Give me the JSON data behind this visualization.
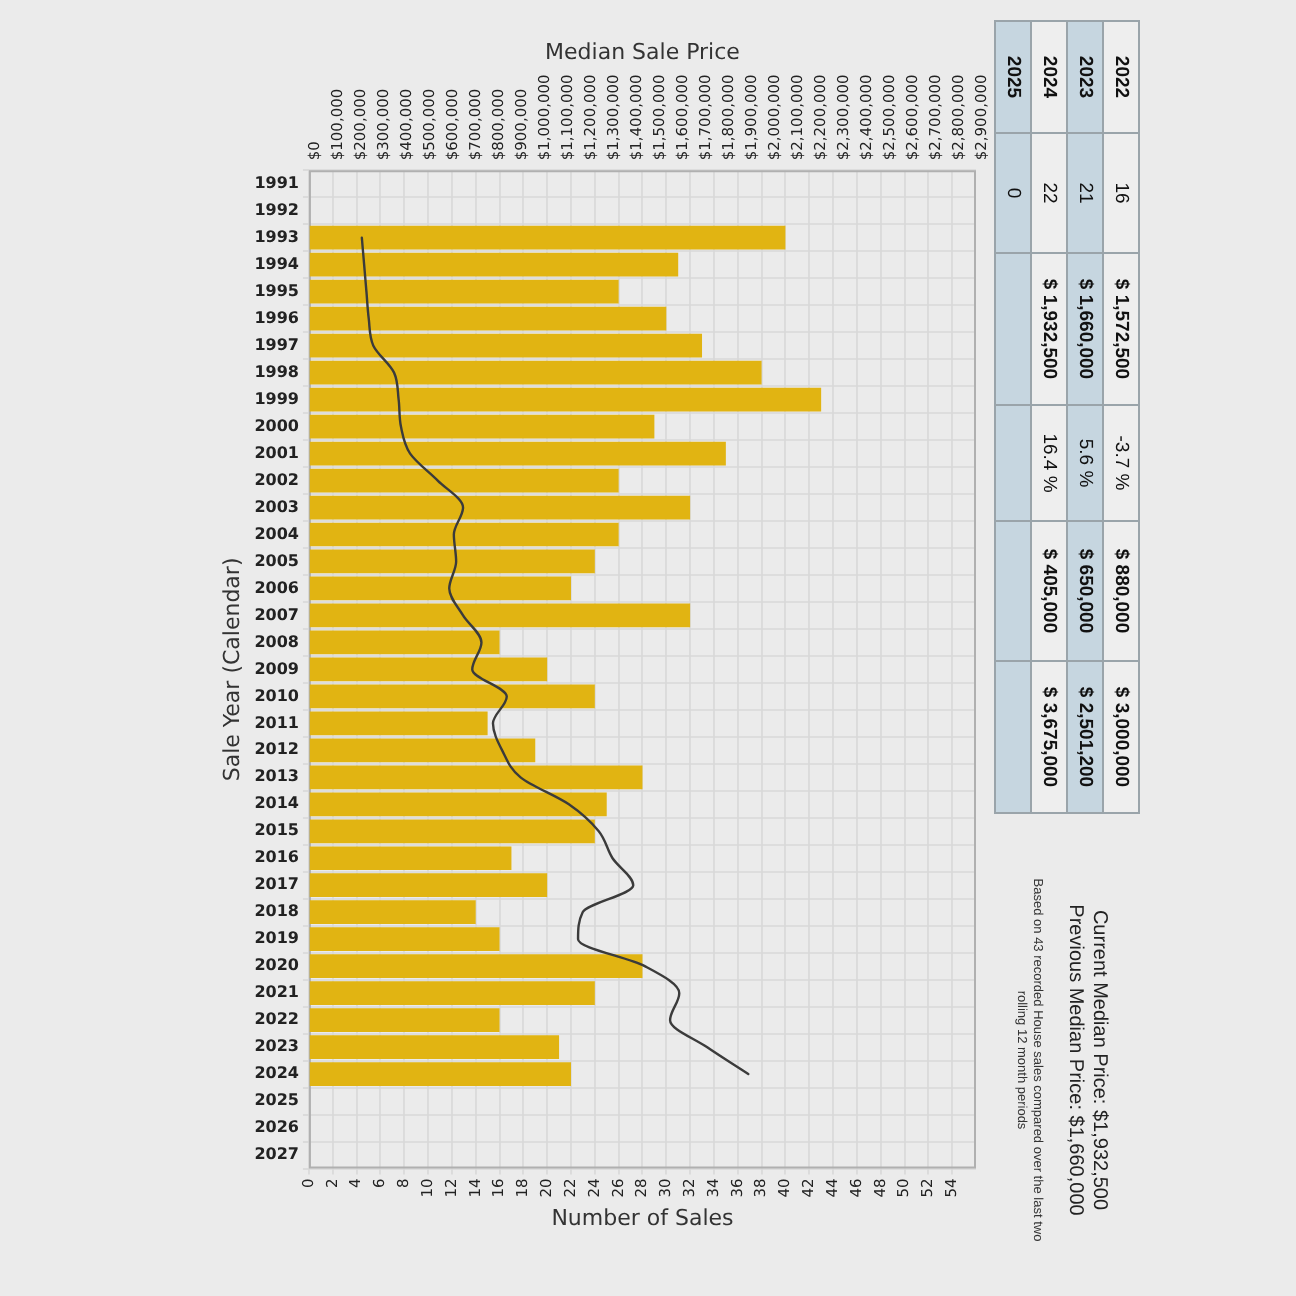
{
  "chart_data": [
    {
      "type": "bar",
      "orientation": "horizontal",
      "xlabel": "Number of Sales",
      "x2label": "Median Sale Price",
      "ylabel": "Sale Year (Calendar)",
      "categories": [
        "1991",
        "1992",
        "1993",
        "1994",
        "1995",
        "1996",
        "1997",
        "1998",
        "1999",
        "2000",
        "2001",
        "2002",
        "2003",
        "2004",
        "2005",
        "2006",
        "2007",
        "2008",
        "2009",
        "2010",
        "2011",
        "2012",
        "2013",
        "2014",
        "2015",
        "2016",
        "2017",
        "2018",
        "2019",
        "2020",
        "2021",
        "2022",
        "2023",
        "2024",
        "2025",
        "2026",
        "2027"
      ],
      "series": [
        {
          "type": "bar",
          "color": "#e1b412",
          "values": [
            null,
            null,
            40,
            31,
            26,
            30,
            33,
            38,
            43,
            29,
            35,
            26,
            32,
            26,
            24,
            22,
            32,
            16,
            20,
            24,
            15,
            19,
            28,
            25,
            24,
            17,
            20,
            14,
            16,
            28,
            24,
            16,
            21,
            22,
            null,
            null,
            null
          ]
        },
        {
          "type": "line",
          "axis": "x2",
          "color": "#3b3b3b",
          "values": [
            null,
            null,
            230000,
            240000,
            250000,
            260000,
            280000,
            370000,
            390000,
            400000,
            440000,
            560000,
            670000,
            630000,
            640000,
            610000,
            670000,
            750000,
            710000,
            860000,
            800000,
            840000,
            920000,
            1130000,
            1260000,
            1320000,
            1410000,
            1190000,
            1170000,
            1460000,
            1610000,
            1570000,
            1730000,
            1910000,
            null,
            null,
            null
          ]
        }
      ],
      "xlim": [
        0,
        56
      ],
      "xticks": [
        0,
        2,
        4,
        6,
        8,
        10,
        12,
        14,
        16,
        18,
        20,
        22,
        24,
        26,
        28,
        30,
        32,
        34,
        36,
        38,
        40,
        42,
        44,
        46,
        48,
        50,
        52,
        54
      ],
      "x2lim": [
        0,
        2900000
      ],
      "x2ticks": [
        {
          "value": 0,
          "label": "$0"
        },
        {
          "value": 100000,
          "label": "$100,000"
        },
        {
          "value": 200000,
          "label": "$200,000"
        },
        {
          "value": 300000,
          "label": "$300,000"
        },
        {
          "value": 400000,
          "label": "$400,000"
        },
        {
          "value": 500000,
          "label": "$500,000"
        },
        {
          "value": 600000,
          "label": "$600,000"
        },
        {
          "value": 700000,
          "label": "$700,000"
        },
        {
          "value": 800000,
          "label": "$800,000"
        },
        {
          "value": 900000,
          "label": "$900,000"
        },
        {
          "value": 1000000,
          "label": "$1,000,000"
        },
        {
          "value": 1100000,
          "label": "$1,100,000"
        },
        {
          "value": 1200000,
          "label": "$1,200,000"
        },
        {
          "value": 1300000,
          "label": "$1,300,000"
        },
        {
          "value": 1400000,
          "label": "$1,400,000"
        },
        {
          "value": 1500000,
          "label": "$1,500,000"
        },
        {
          "value": 1600000,
          "label": "$1,600,000"
        },
        {
          "value": 1700000,
          "label": "$1,700,000"
        },
        {
          "value": 1800000,
          "label": "$1,800,000"
        },
        {
          "value": 1900000,
          "label": "$1,900,000"
        },
        {
          "value": 2000000,
          "label": "$2,000,000"
        },
        {
          "value": 2100000,
          "label": "$2,100,000"
        },
        {
          "value": 2200000,
          "label": "$2,200,000"
        },
        {
          "value": 2300000,
          "label": "$2,300,000"
        },
        {
          "value": 2400000,
          "label": "$2,400,000"
        },
        {
          "value": 2500000,
          "label": "$2,500,000"
        },
        {
          "value": 2600000,
          "label": "$2,600,000"
        },
        {
          "value": 2700000,
          "label": "$2,700,000"
        },
        {
          "value": 2800000,
          "label": "$2,800,000"
        },
        {
          "value": 2900000,
          "label": "$2,900,000"
        }
      ],
      "grid": true,
      "marker": "none",
      "line_style": "solid",
      "annotations": [
        "2022",
        "16",
        "$ 1,572,500",
        "-3.7 %",
        "$ 880,000",
        "$ 3,000,000",
        "2023",
        "21",
        "$ 1,660,000",
        "5.6 %",
        "$ 650,000",
        "$ 2,501,200",
        "2024",
        "22",
        "$ 1,932,500",
        "16.4 %",
        "$ 405,000",
        "$ 3,675,000",
        "2025",
        "0"
      ]
    },
    {
      "type": "other",
      "title": "Current Median Price: $1,932,500",
      "subtitle": "Previous Median Price: $1,660,000",
      "annotations": [
        "Based on 43 recorded House sales compared over the last two rolling 12 month periods"
      ]
    }
  ]
}
